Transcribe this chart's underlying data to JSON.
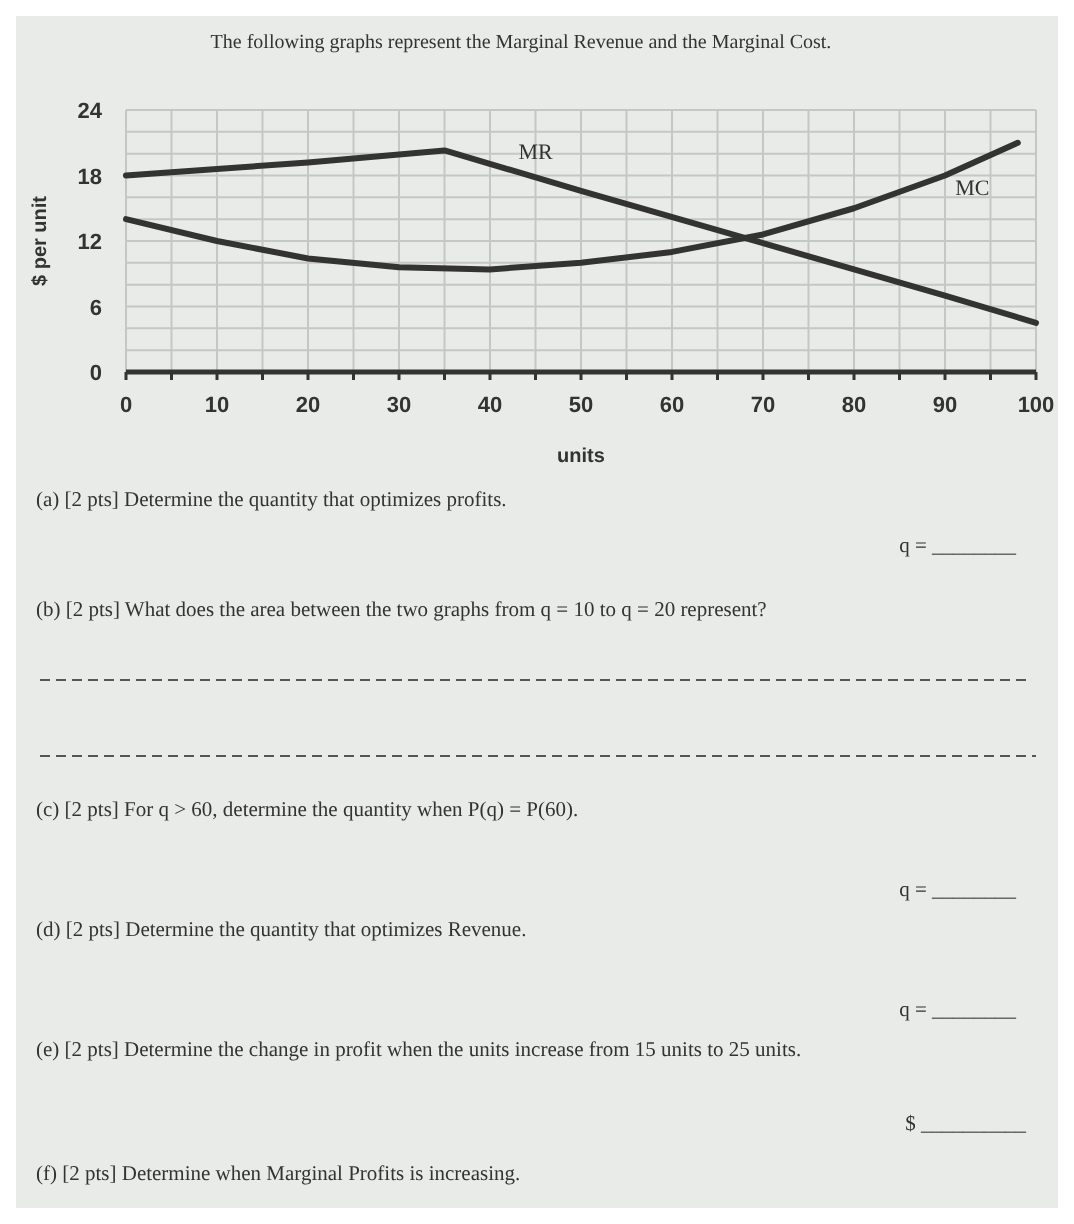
{
  "chart_data": {
    "type": "line",
    "title": "The following graphs represent the Marginal Revenue and the Marginal Cost.",
    "xlabel": "units",
    "ylabel": "$ per unit",
    "series": [
      {
        "name": "MR",
        "color": "#333333",
        "x": [
          0,
          10,
          20,
          35,
          50,
          67.5,
          80,
          90,
          100
        ],
        "values": [
          18,
          18.6,
          19.2,
          20.3,
          16.6,
          12.4,
          9.4,
          7,
          4.5
        ]
      },
      {
        "name": "MC",
        "color": "#333333",
        "x": [
          0,
          10,
          20,
          30,
          40,
          50,
          60,
          70,
          80,
          90,
          98
        ],
        "values": [
          14,
          12,
          10.4,
          9.6,
          9.4,
          10,
          11,
          12.6,
          15,
          18,
          21
        ]
      }
    ],
    "xlim": [
      0,
      100
    ],
    "xticks": [
      0,
      {
        "value": 5,
        "label": null
      },
      10,
      {
        "value": 15,
        "label": null
      },
      20,
      {
        "value": 25,
        "label": null
      },
      30,
      {
        "value": 35,
        "label": null
      },
      40,
      {
        "value": 45,
        "label": null
      },
      50,
      {
        "value": 55,
        "label": null
      },
      60,
      {
        "value": 65,
        "label": null
      },
      70,
      {
        "value": 75,
        "label": null
      },
      80,
      {
        "value": 85,
        "label": null
      },
      90,
      {
        "value": 95,
        "label": null
      },
      100
    ],
    "ylim": [
      0,
      24
    ],
    "yticks": [
      0,
      {
        "value": 2,
        "label": null
      },
      {
        "value": 4,
        "label": null
      },
      6,
      {
        "value": 8,
        "label": null
      },
      {
        "value": 10,
        "label": null
      },
      12,
      {
        "value": 14,
        "label": null
      },
      {
        "value": 16,
        "label": null
      },
      18,
      {
        "value": 20,
        "label": null
      },
      {
        "value": 22,
        "label": null
      },
      24
    ],
    "grid": true,
    "marker": "none",
    "line_style": "solid",
    "annotations": [
      "(a)  [2 pts] Determine the quantity that optimizes profits.",
      "q = ________",
      "(b)  [2 pts] What does the area between the two graphs from q = 10 to q = 20 represent?",
      "(c)  [2 pts] For q > 60, determine the quantity when P(q) = P(60).",
      "q = ________",
      "(d)  [2 pts] Determine the quantity that optimizes Revenue.",
      "q = ________",
      "(e)  [2 pts] Determine the change in profit when the units increase from 15 units to 25 units.",
      "$ __________",
      "(f)  [2 pts] Determine when Marginal Profits is increasing."
    ]
  }
}
